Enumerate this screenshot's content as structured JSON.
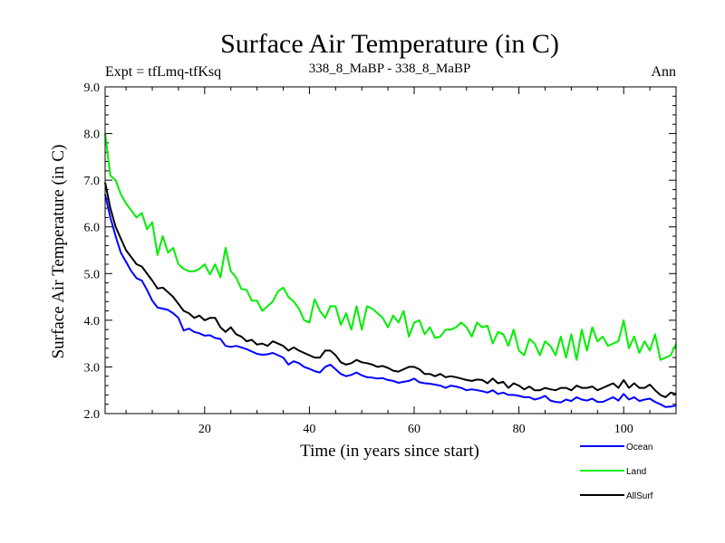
{
  "chart_data": {
    "type": "line",
    "title": "Surface Air Temperature (in C)",
    "left_label": "Expt = tfLmq-tfKsq",
    "center_label": "338_8_MaBP - 338_8_MaBP",
    "right_label": "Ann",
    "xlabel": "Time (in years since start)",
    "ylabel": "Surface Air Temperature (in C)",
    "xlim": [
      1,
      110
    ],
    "ylim": [
      2.0,
      9.0
    ],
    "xticks": [
      20,
      40,
      60,
      80,
      100
    ],
    "yticks": [
      "2.0",
      "3.0",
      "4.0",
      "5.0",
      "6.0",
      "7.0",
      "8.0",
      "9.0"
    ],
    "x": [
      1,
      2,
      3,
      4,
      5,
      6,
      7,
      8,
      9,
      10,
      11,
      12,
      13,
      14,
      15,
      16,
      17,
      18,
      19,
      20,
      21,
      22,
      23,
      24,
      25,
      26,
      27,
      28,
      29,
      30,
      31,
      32,
      33,
      34,
      35,
      36,
      37,
      38,
      39,
      40,
      41,
      42,
      43,
      44,
      45,
      46,
      47,
      48,
      49,
      50,
      51,
      52,
      53,
      54,
      55,
      56,
      57,
      58,
      59,
      60,
      61,
      62,
      63,
      64,
      65,
      66,
      67,
      68,
      69,
      70,
      71,
      72,
      73,
      74,
      75,
      76,
      77,
      78,
      79,
      80,
      81,
      82,
      83,
      84,
      85,
      86,
      87,
      88,
      89,
      90,
      91,
      92,
      93,
      94,
      95,
      96,
      97,
      98,
      99,
      100,
      101,
      102,
      103,
      104,
      105,
      106,
      107,
      108,
      109,
      110
    ],
    "series": [
      {
        "name": "Ocean",
        "color": "#0000ff",
        "values": [
          6.7,
          6.2,
          5.8,
          5.45,
          5.25,
          5.05,
          4.9,
          4.85,
          4.65,
          4.42,
          4.27,
          4.25,
          4.22,
          4.15,
          4.05,
          3.78,
          3.82,
          3.75,
          3.72,
          3.67,
          3.68,
          3.62,
          3.6,
          3.45,
          3.43,
          3.45,
          3.42,
          3.38,
          3.33,
          3.28,
          3.26,
          3.27,
          3.3,
          3.25,
          3.2,
          3.05,
          3.12,
          3.08,
          3.0,
          2.96,
          2.91,
          2.88,
          3.0,
          3.05,
          2.95,
          2.85,
          2.8,
          2.83,
          2.88,
          2.82,
          2.78,
          2.77,
          2.75,
          2.76,
          2.72,
          2.7,
          2.66,
          2.68,
          2.7,
          2.75,
          2.67,
          2.65,
          2.64,
          2.62,
          2.6,
          2.55,
          2.6,
          2.58,
          2.55,
          2.5,
          2.52,
          2.5,
          2.48,
          2.45,
          2.5,
          2.42,
          2.45,
          2.4,
          2.4,
          2.38,
          2.35,
          2.35,
          2.3,
          2.33,
          2.38,
          2.28,
          2.25,
          2.24,
          2.3,
          2.27,
          2.35,
          2.3,
          2.28,
          2.32,
          2.25,
          2.25,
          2.3,
          2.35,
          2.28,
          2.42,
          2.3,
          2.35,
          2.27,
          2.3,
          2.32,
          2.25,
          2.2,
          2.14,
          2.15,
          2.17
        ]
      },
      {
        "name": "Land",
        "color": "#00ee00",
        "values": [
          8.0,
          7.1,
          7.0,
          6.7,
          6.5,
          6.35,
          6.2,
          6.3,
          5.95,
          6.1,
          5.4,
          5.8,
          5.45,
          5.55,
          5.2,
          5.1,
          5.05,
          5.05,
          5.1,
          5.2,
          4.98,
          5.2,
          4.92,
          5.55,
          5.05,
          4.92,
          4.67,
          4.65,
          4.42,
          4.42,
          4.2,
          4.3,
          4.4,
          4.62,
          4.7,
          4.5,
          4.4,
          4.25,
          4.0,
          3.95,
          4.45,
          4.2,
          4.05,
          4.3,
          4.3,
          3.9,
          4.15,
          3.8,
          4.3,
          3.8,
          4.3,
          4.25,
          4.15,
          4.05,
          3.85,
          4.1,
          3.95,
          4.2,
          3.65,
          3.95,
          4.0,
          3.7,
          3.85,
          3.62,
          3.65,
          3.8,
          3.8,
          3.85,
          3.95,
          3.85,
          3.65,
          3.95,
          3.85,
          3.88,
          3.5,
          3.75,
          3.7,
          3.45,
          3.8,
          3.35,
          3.25,
          3.6,
          3.5,
          3.25,
          3.55,
          3.45,
          3.25,
          3.65,
          3.2,
          3.7,
          3.15,
          3.8,
          3.35,
          3.85,
          3.55,
          3.65,
          3.45,
          3.5,
          3.55,
          4.0,
          3.4,
          3.65,
          3.3,
          3.55,
          3.35,
          3.7,
          3.15,
          3.2,
          3.25,
          3.5
        ]
      },
      {
        "name": "AllSurf",
        "color": "#000000",
        "values": [
          6.95,
          6.4,
          6.0,
          5.75,
          5.5,
          5.35,
          5.2,
          5.15,
          5.0,
          4.85,
          4.68,
          4.7,
          4.6,
          4.5,
          4.35,
          4.2,
          4.15,
          4.05,
          4.1,
          4.0,
          4.05,
          4.05,
          3.85,
          3.75,
          3.85,
          3.7,
          3.65,
          3.55,
          3.58,
          3.48,
          3.5,
          3.45,
          3.55,
          3.5,
          3.45,
          3.35,
          3.42,
          3.35,
          3.3,
          3.25,
          3.2,
          3.2,
          3.35,
          3.35,
          3.25,
          3.1,
          3.05,
          3.08,
          3.15,
          3.1,
          3.08,
          3.05,
          3.0,
          3.02,
          2.98,
          2.92,
          2.9,
          2.95,
          3.0,
          3.0,
          2.95,
          2.85,
          2.85,
          2.8,
          2.85,
          2.78,
          2.8,
          2.78,
          2.75,
          2.72,
          2.7,
          2.73,
          2.72,
          2.65,
          2.75,
          2.65,
          2.68,
          2.55,
          2.65,
          2.6,
          2.52,
          2.58,
          2.5,
          2.5,
          2.55,
          2.52,
          2.5,
          2.55,
          2.55,
          2.5,
          2.6,
          2.55,
          2.55,
          2.58,
          2.5,
          2.55,
          2.6,
          2.65,
          2.55,
          2.72,
          2.55,
          2.65,
          2.55,
          2.55,
          2.62,
          2.5,
          2.4,
          2.35,
          2.45,
          2.42
        ]
      }
    ],
    "legend_position": "bottom-right"
  }
}
